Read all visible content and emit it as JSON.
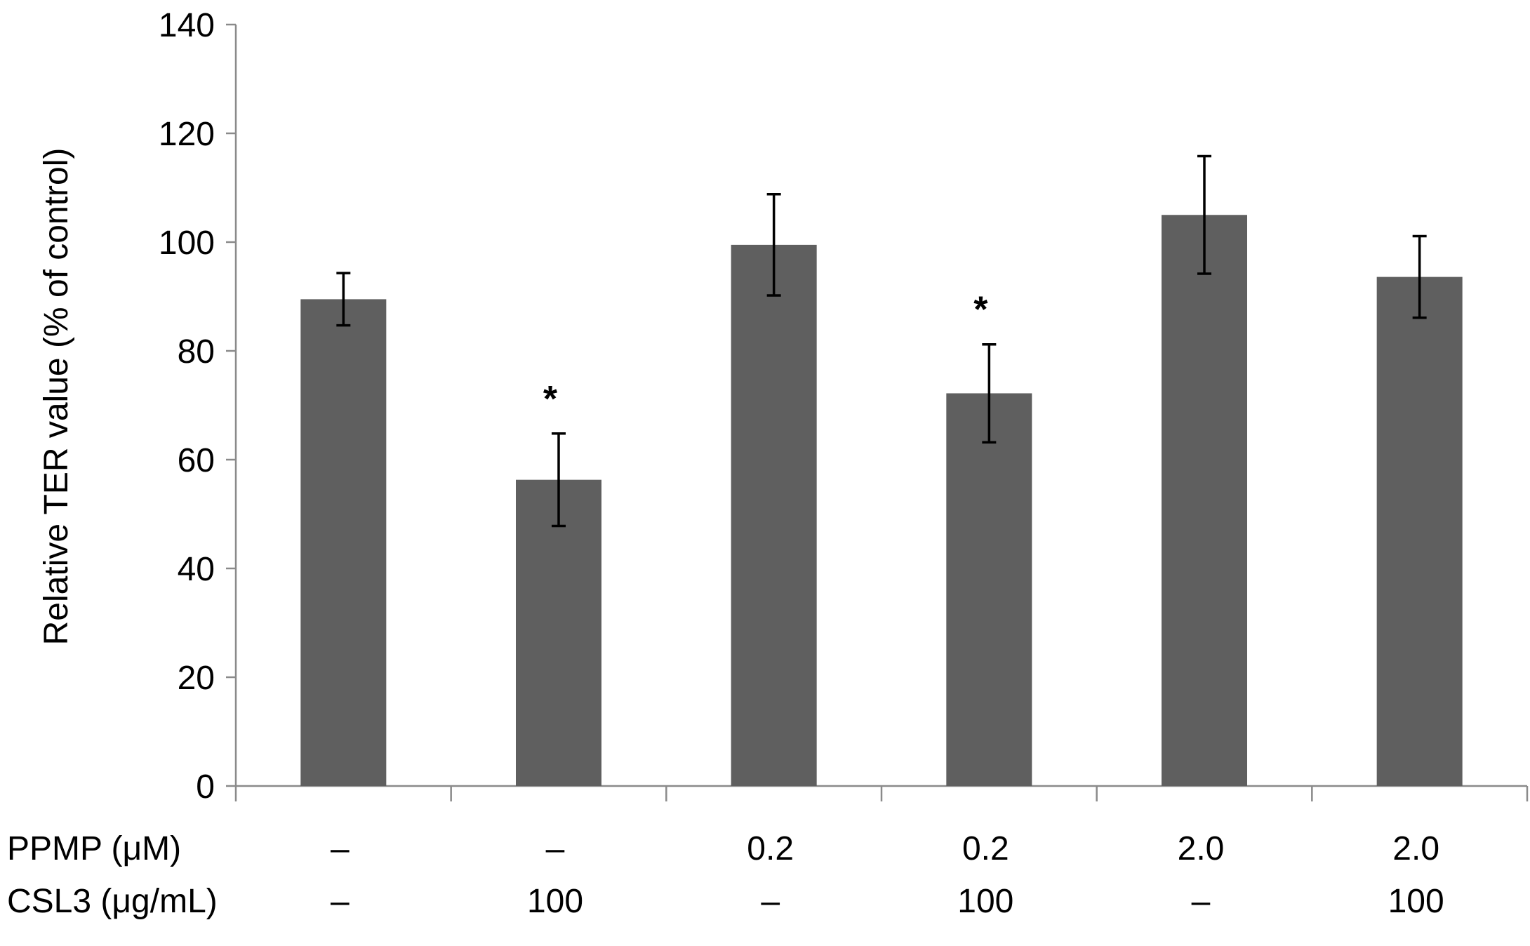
{
  "chart_data": {
    "type": "bar",
    "xlabel": "",
    "ylabel": "Relative TER value (% of control)",
    "ylim": [
      0,
      140
    ],
    "yticks": [
      0,
      20,
      40,
      60,
      80,
      100,
      120,
      140
    ],
    "grid": false,
    "legend": "none",
    "bar_color": "#5f5f5f",
    "categories": [
      {
        "ppmp": "–",
        "csl3": "–"
      },
      {
        "ppmp": "–",
        "csl3": "100"
      },
      {
        "ppmp": "0.2",
        "csl3": "–"
      },
      {
        "ppmp": "0.2",
        "csl3": "100"
      },
      {
        "ppmp": "2.0",
        "csl3": "–"
      },
      {
        "ppmp": "2.0",
        "csl3": "100"
      }
    ],
    "row_labels": {
      "ppmp": "PPMP (μM)",
      "csl3": "CSL3 (μg/mL)"
    },
    "values": [
      89.5,
      56.3,
      99.5,
      72.2,
      105.0,
      93.6
    ],
    "errors": [
      4.8,
      8.5,
      9.3,
      9.0,
      10.8,
      7.5
    ],
    "annotations": [
      "",
      "*",
      "",
      "*",
      "",
      ""
    ]
  }
}
